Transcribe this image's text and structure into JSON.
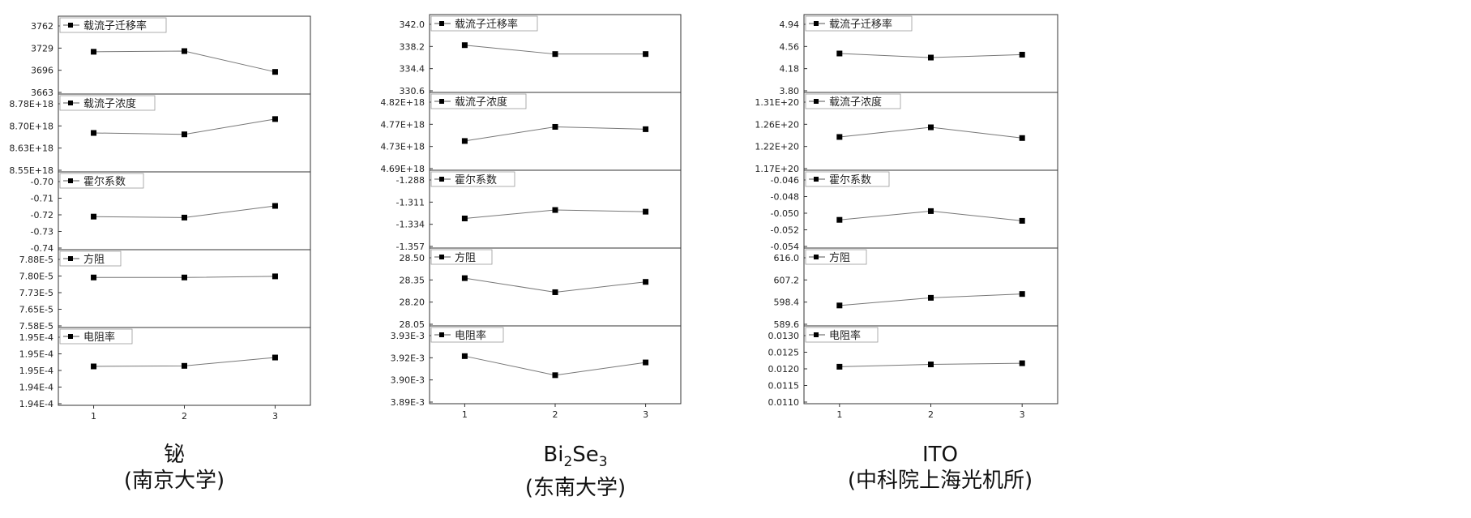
{
  "charts": [
    {
      "material_label": "铋",
      "institution": "(南京大学)",
      "x_ticks": [
        "1",
        "2",
        "3"
      ],
      "panels": [
        {
          "legend": "载流子迁移率",
          "ticks": [
            "3762",
            "3729",
            "3696",
            "3663"
          ],
          "ylim": [
            3656,
            3772
          ],
          "values": [
            3719,
            3720,
            3689
          ]
        },
        {
          "legend": "载流子浓度",
          "ticks": [
            "8.78E+18",
            "8.70E+18",
            "8.63E+18",
            "8.55E+18"
          ],
          "ylim": [
            8.5e+18,
            8.78e+18
          ],
          "values": [
            8.64e+18,
            8.635e+18,
            8.69e+18
          ]
        },
        {
          "legend": "霍尔系数",
          "ticks": [
            "-0.70",
            "-0.71",
            "-0.72",
            "-0.73",
            "-0.74"
          ],
          "ylim": [
            -0.74,
            -0.7
          ],
          "values": [
            -0.723,
            -0.7235,
            -0.7175
          ]
        },
        {
          "legend": "方阻",
          "ticks": [
            "7.88E-5",
            "7.80E-5",
            "7.73E-5",
            "7.65E-5",
            "7.58E-5"
          ],
          "ylim": [
            7.55e-05,
            7.9e-05
          ],
          "values": [
            7.775e-05,
            7.775e-05,
            7.78e-05
          ]
        },
        {
          "legend": "电阻率",
          "ticks": [
            "1.95E-4",
            "1.95E-4",
            "1.95E-4",
            "1.94E-4",
            "1.94E-4"
          ],
          "ylim": [
            0.00019395,
            0.00019535
          ],
          "values": [
            0.00019465,
            0.00019466,
            0.00019481
          ]
        }
      ]
    },
    {
      "material_label": "Bi",
      "material_sub1": "2",
      "material_mid": "Se",
      "material_sub2": "3",
      "institution": "(东南大学)",
      "x_ticks": [
        "1",
        "2",
        "3"
      ],
      "panels": [
        {
          "legend": "载流子迁移率",
          "ticks": [
            "342.0",
            "338.2",
            "334.4",
            "330.6"
          ],
          "ylim": [
            330.0,
            344.0
          ],
          "values": [
            338.5,
            336.9,
            336.9
          ]
        },
        {
          "legend": "载流子浓度",
          "ticks": [
            "4.82E+18",
            "4.77E+18",
            "4.73E+18",
            "4.69E+18"
          ],
          "ylim": [
            4.665e+18,
            4.83e+18
          ],
          "values": [
            4.727e+18,
            4.757e+18,
            4.752e+18
          ]
        },
        {
          "legend": "霍尔系数",
          "ticks": [
            "-1.288",
            "-1.311",
            "-1.334",
            "-1.357"
          ],
          "ylim": [
            -1.357,
            -1.265
          ],
          "values": [
            -1.322,
            -1.312,
            -1.314
          ]
        },
        {
          "legend": "方阻",
          "ticks": [
            "28.50",
            "28.35",
            "28.20",
            "28.05"
          ],
          "ylim": [
            28.03,
            28.55
          ],
          "values": [
            28.349,
            28.255,
            28.324
          ]
        },
        {
          "legend": "电阻率",
          "ticks": [
            "3.93E-3",
            "3.92E-3",
            "3.90E-3",
            "3.89E-3"
          ],
          "ylim": [
            0.0038868,
            0.0039313
          ],
          "values": [
            0.003914,
            0.0039031,
            0.0039104
          ]
        }
      ]
    },
    {
      "material_label": "ITO",
      "institution": "(中科院上海光机所)",
      "x_ticks": [
        "1",
        "2",
        "3"
      ],
      "panels": [
        {
          "legend": "载流子迁移率",
          "ticks": [
            "4.94",
            "4.56",
            "4.18",
            "3.80"
          ],
          "ylim": [
            3.6,
            4.94
          ],
          "values": [
            4.27,
            4.2,
            4.25
          ]
        },
        {
          "legend": "载流子浓度",
          "ticks": [
            "1.31E+20",
            "1.26E+20",
            "1.22E+20",
            "1.17E+20"
          ],
          "ylim": [
            1.17e+20,
            1.315e+20
          ],
          "values": [
            1.232e+20,
            1.25e+20,
            1.23e+20
          ]
        },
        {
          "legend": "霍尔系数",
          "ticks": [
            "-0.046",
            "-0.048",
            "-0.050",
            "-0.052",
            "-0.054"
          ],
          "ylim": [
            -0.054,
            -0.046
          ],
          "values": [
            -0.0511,
            -0.0502,
            -0.0512
          ]
        },
        {
          "legend": "方阻",
          "ticks": [
            "616.0",
            "607.2",
            "598.4",
            "589.6"
          ],
          "ylim": [
            588.5,
            619.0
          ],
          "values": [
            596.5,
            599.5,
            601.0
          ]
        },
        {
          "legend": "电阻率",
          "ticks": [
            "0.0130",
            "0.0125",
            "0.0120",
            "0.0115",
            "0.0110"
          ],
          "ylim": [
            0.011,
            0.013
          ],
          "values": [
            0.01195,
            0.01201,
            0.01204
          ]
        }
      ]
    }
  ],
  "chart_data": [
    {
      "type": "line",
      "title": "铋 (南京大学)",
      "x": [
        1,
        2,
        3
      ],
      "series": [
        {
          "name": "载流子迁移率",
          "values": [
            3719,
            3720,
            3689
          ]
        },
        {
          "name": "载流子浓度",
          "values": [
            8.64e+18,
            8.635e+18,
            8.69e+18
          ]
        },
        {
          "name": "霍尔系数",
          "values": [
            -0.723,
            -0.7235,
            -0.7175
          ]
        },
        {
          "name": "方阻",
          "values": [
            7.775e-05,
            7.775e-05,
            7.78e-05
          ]
        },
        {
          "name": "电阻率",
          "values": [
            0.00019465,
            0.00019466,
            0.00019481
          ]
        }
      ]
    },
    {
      "type": "line",
      "title": "Bi2Se3 (东南大学)",
      "x": [
        1,
        2,
        3
      ],
      "series": [
        {
          "name": "载流子迁移率",
          "values": [
            338.5,
            336.9,
            336.9
          ]
        },
        {
          "name": "载流子浓度",
          "values": [
            4.727e+18,
            4.757e+18,
            4.752e+18
          ]
        },
        {
          "name": "霍尔系数",
          "values": [
            -1.322,
            -1.312,
            -1.314
          ]
        },
        {
          "name": "方阻",
          "values": [
            28.349,
            28.255,
            28.324
          ]
        },
        {
          "name": "电阻率",
          "values": [
            0.003914,
            0.0039031,
            0.0039104
          ]
        }
      ]
    },
    {
      "type": "line",
      "title": "ITO (中科院上海光机所)",
      "x": [
        1,
        2,
        3
      ],
      "series": [
        {
          "name": "载流子迁移率",
          "values": [
            4.27,
            4.2,
            4.25
          ]
        },
        {
          "name": "载流子浓度",
          "values": [
            1.232e+20,
            1.25e+20,
            1.23e+20
          ]
        },
        {
          "name": "霍尔系数",
          "values": [
            -0.0511,
            -0.0502,
            -0.0512
          ]
        },
        {
          "name": "方阻",
          "values": [
            596.5,
            599.5,
            601.0
          ]
        },
        {
          "name": "电阻率",
          "values": [
            0.01195,
            0.01201,
            0.01204
          ]
        }
      ]
    }
  ]
}
